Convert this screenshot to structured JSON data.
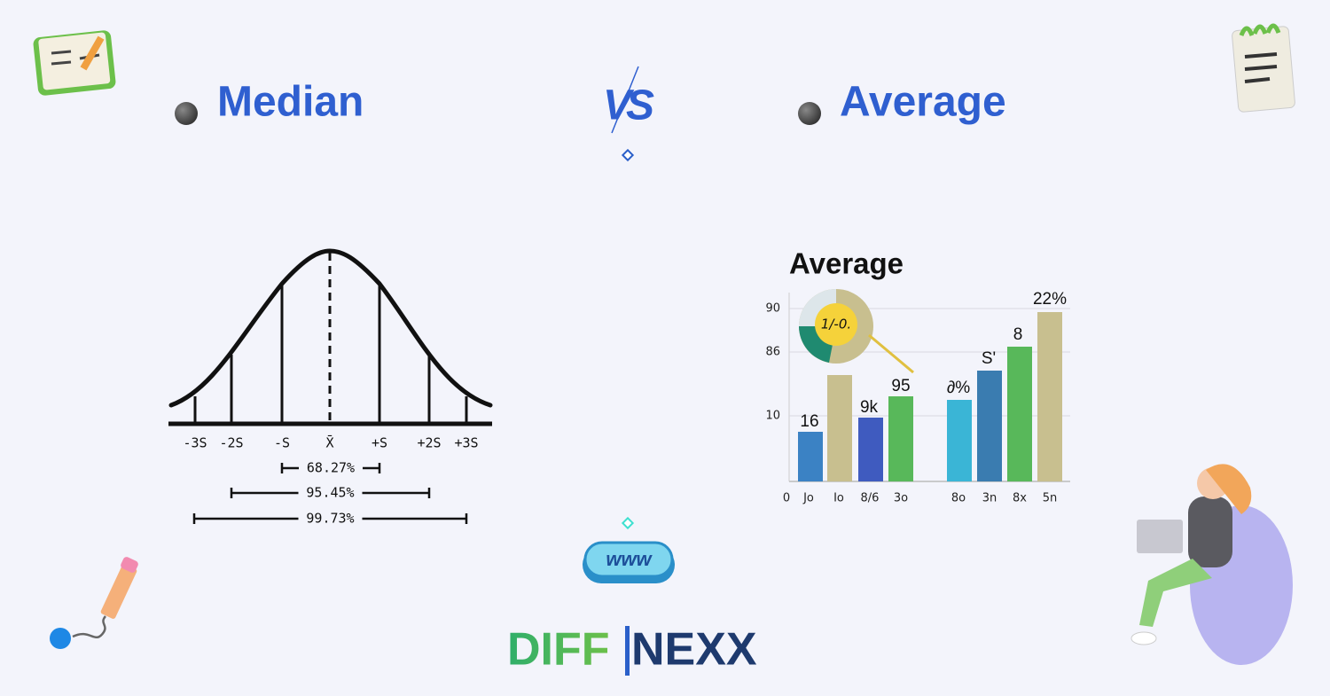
{
  "header": {
    "left_title": "Median",
    "vs": "VS",
    "right_title": "Average"
  },
  "bell_curve": {
    "tick_labels": [
      "-3S",
      "-2S",
      "-S",
      "X̄",
      "+S",
      "+2S",
      "+3S"
    ],
    "ranges": [
      "68.27%",
      "95.45%",
      "99.73%"
    ]
  },
  "bar_image": {
    "title": "Average",
    "y_labels": [
      "90",
      "86",
      "10"
    ],
    "pie_label": "1/-0.",
    "bar_labels": [
      "16",
      "9k",
      "95",
      "∂%",
      "S'",
      "8",
      "22%"
    ],
    "x_labels": [
      "0",
      "Jo",
      "Io",
      "8/6",
      "3o",
      "8o",
      "3n",
      "8x",
      "5n"
    ]
  },
  "badge": "www",
  "logo": {
    "first": "DIFF",
    "second": "NEXX"
  }
}
